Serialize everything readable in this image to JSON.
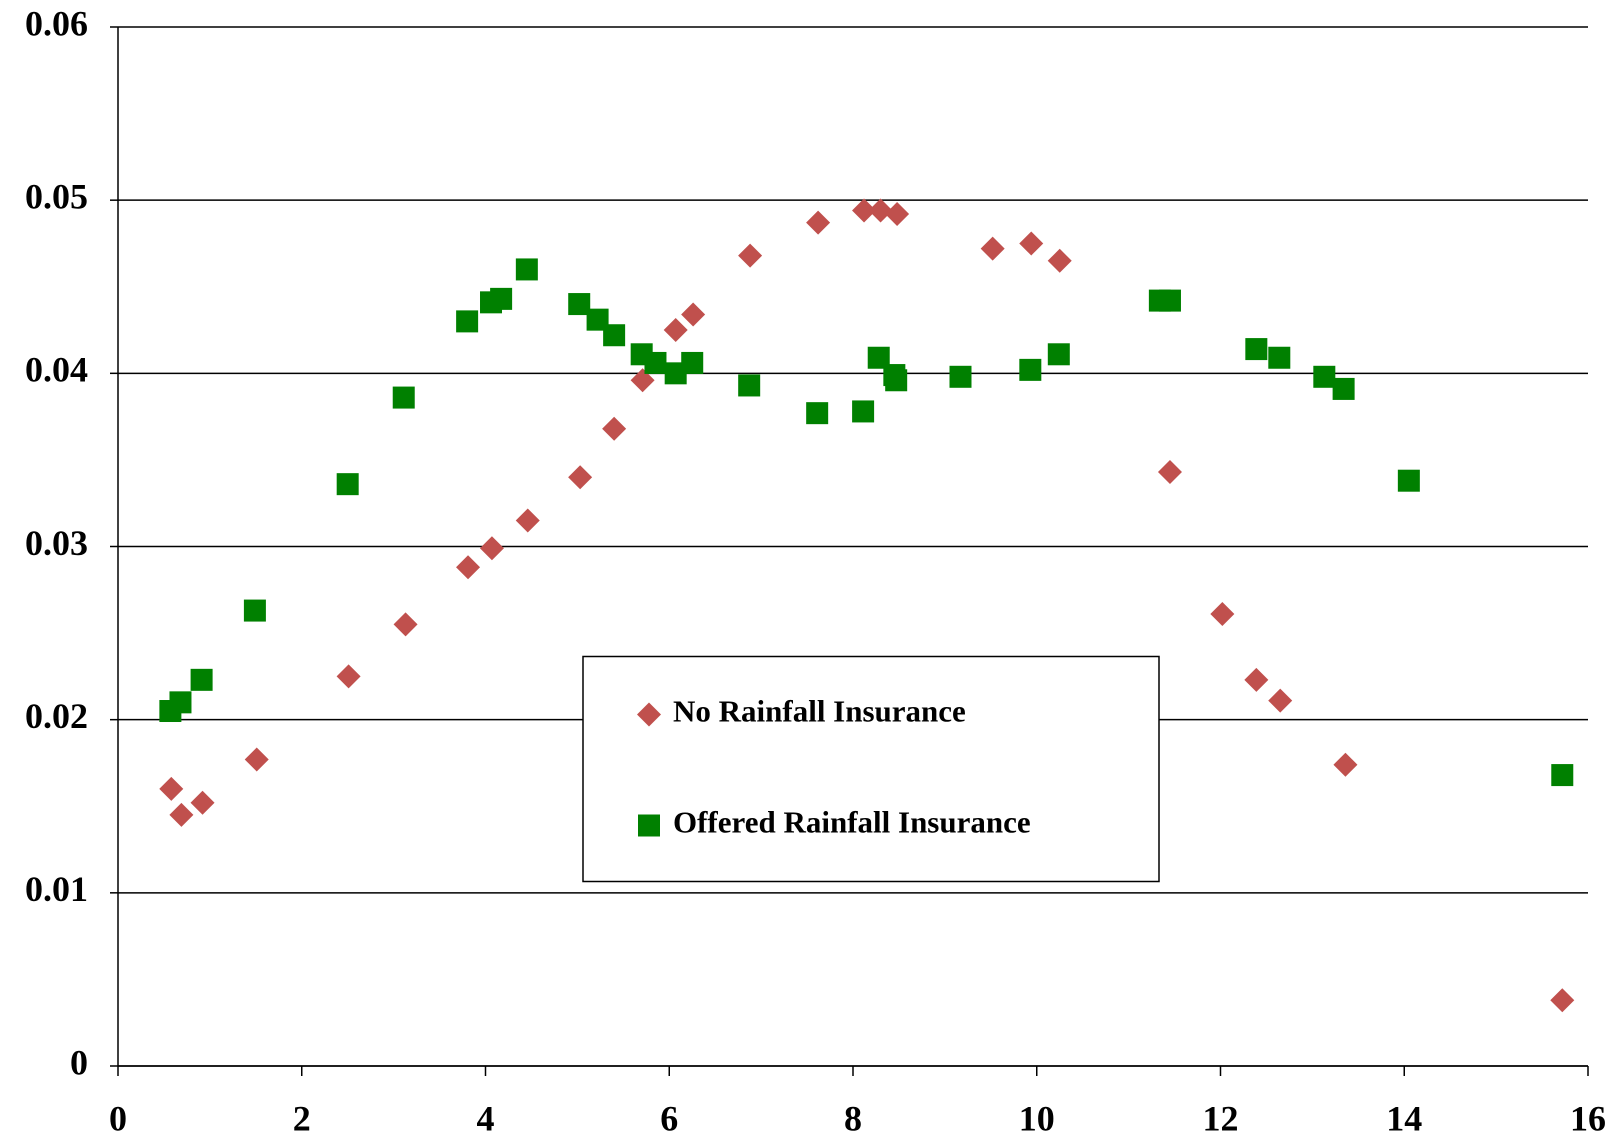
{
  "chart_data": {
    "type": "scatter",
    "xlim": [
      0,
      16
    ],
    "xticks": [
      0,
      2,
      4,
      6,
      8,
      10,
      12,
      14,
      16
    ],
    "ylim": [
      0,
      0.06
    ],
    "yticks": [
      0,
      0.01,
      0.02,
      0.03,
      0.04,
      0.05,
      0.06
    ],
    "grid": true,
    "legend_position": "center",
    "series": [
      {
        "name": "No Rainfall Insurance",
        "color": "#c0504d",
        "marker": "diamond",
        "x": [
          0.58,
          0.69,
          0.92,
          1.51,
          2.51,
          3.13,
          3.81,
          4.07,
          4.46,
          5.03,
          5.4,
          5.71,
          6.07,
          6.26,
          6.88,
          7.62,
          8.12,
          8.3,
          8.48,
          9.52,
          9.94,
          10.25,
          11.45,
          12.02,
          12.39,
          12.65,
          13.36,
          15.72
        ],
        "values": [
          0.016,
          0.0145,
          0.0152,
          0.0177,
          0.0225,
          0.0255,
          0.0288,
          0.0299,
          0.0315,
          0.034,
          0.0368,
          0.0396,
          0.0425,
          0.0434,
          0.0468,
          0.0487,
          0.0494,
          0.0494,
          0.0492,
          0.0472,
          0.0475,
          0.0465,
          0.0343,
          0.0261,
          0.0223,
          0.0211,
          0.0174,
          0.0038
        ]
      },
      {
        "name": "Offered Rainfall Insurance",
        "color": "#008000",
        "marker": "square",
        "x": [
          0.57,
          0.68,
          0.91,
          1.49,
          2.5,
          3.11,
          3.8,
          4.06,
          4.17,
          4.45,
          5.02,
          5.22,
          5.4,
          5.7,
          5.85,
          6.07,
          6.25,
          6.87,
          7.61,
          8.11,
          8.28,
          8.45,
          8.47,
          9.17,
          9.93,
          10.24,
          11.34,
          11.45,
          12.39,
          12.64,
          13.13,
          13.34,
          14.05,
          15.72
        ],
        "values": [
          0.0205,
          0.021,
          0.0223,
          0.0263,
          0.0336,
          0.0386,
          0.043,
          0.0441,
          0.0443,
          0.046,
          0.044,
          0.0431,
          0.0422,
          0.0411,
          0.0406,
          0.04,
          0.0406,
          0.0393,
          0.0377,
          0.0378,
          0.0409,
          0.0399,
          0.0396,
          0.0398,
          0.0402,
          0.0411,
          0.0442,
          0.0442,
          0.0414,
          0.0409,
          0.0398,
          0.0391,
          0.0338,
          0.0168
        ]
      }
    ]
  }
}
